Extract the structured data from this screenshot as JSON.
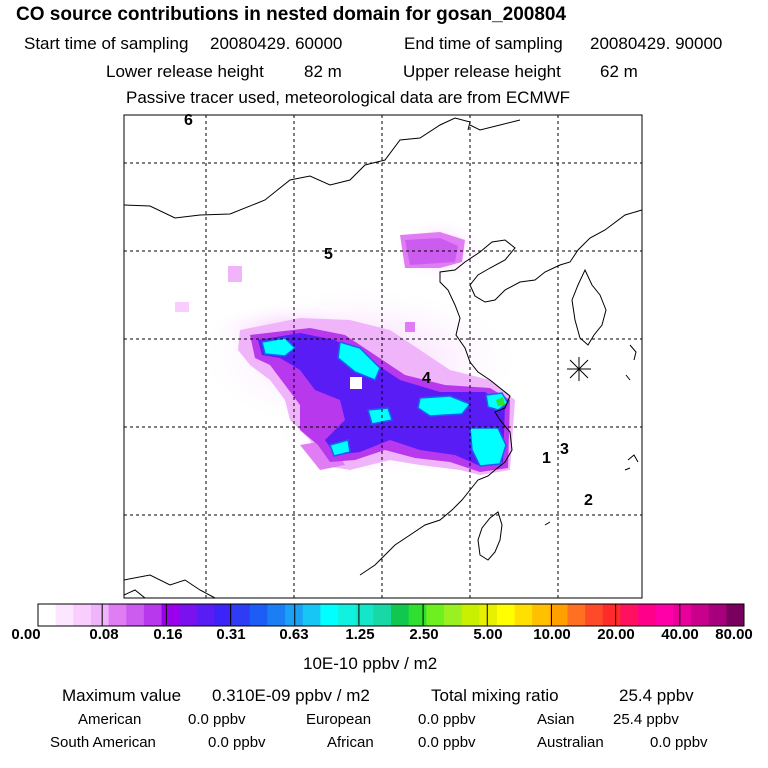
{
  "header": {
    "title": "CO  source contributions in nested domain for gosan_200804",
    "start_label": "Start time of sampling",
    "start_value": "20080429. 60000",
    "end_label": "End time of sampling",
    "end_value": "20080429. 90000",
    "lower_label": "Lower release height",
    "lower_value": "82 m",
    "upper_label": "Upper release height",
    "upper_value": "62 m",
    "note": "Passive tracer used, meteorological data are from ECMWF"
  },
  "chart_data": {
    "type": "heatmap",
    "title": "CO  source contributions in nested domain for gosan_200804",
    "units": "10E-10 ppbv / m2",
    "colorbar_ticks": [
      "0.00",
      "0.08",
      "0.16",
      "0.31",
      "0.63",
      "1.25",
      "2.50",
      "5.00",
      "10.00",
      "20.00",
      "40.00",
      "80.00"
    ],
    "colorbar_colors": [
      "#ffffff",
      "#fde6ff",
      "#f9cdfd",
      "#f0b4fb",
      "#e07df5",
      "#cc5cf0",
      "#b838ee",
      "#9b00ee",
      "#7a12f0",
      "#5a1cf5",
      "#3c24f8",
      "#2f3cf5",
      "#1c5ef5",
      "#1b7ef5",
      "#1aa0f5",
      "#18c6f5",
      "#00ffff",
      "#10f2df",
      "#16e6c8",
      "#18d8a5",
      "#10c850",
      "#30e030",
      "#6ef020",
      "#9af020",
      "#c8f000",
      "#e6f000",
      "#ffff00",
      "#ffe000",
      "#ffc000",
      "#ffa000",
      "#ff7020",
      "#ff4a2a",
      "#ff2a2a",
      "#ff1060",
      "#ff008a",
      "#ff00a8",
      "#e8009c",
      "#c8008c",
      "#a8007c",
      "#7a005e"
    ],
    "max_value": "0.310E-09 ppbv / m2",
    "total_mixing_ratio": "25.4 ppbv",
    "map_labels": [
      "6",
      "5",
      "4",
      "3",
      "2",
      "1"
    ],
    "grid": true
  },
  "footer": {
    "max_label": "Maximum value",
    "max_value": "0.310E-09 ppbv / m2",
    "total_label": "Total mixing ratio",
    "total_value": "25.4 ppbv",
    "sources": [
      {
        "name": "American",
        "value": "0.0 ppbv"
      },
      {
        "name": "European",
        "value": "0.0 ppbv"
      },
      {
        "name": "Asian",
        "value": "25.4 ppbv"
      },
      {
        "name": "South American",
        "value": "0.0 ppbv"
      },
      {
        "name": "African",
        "value": "0.0 ppbv"
      },
      {
        "name": "Australian",
        "value": "0.0 ppbv"
      }
    ]
  }
}
